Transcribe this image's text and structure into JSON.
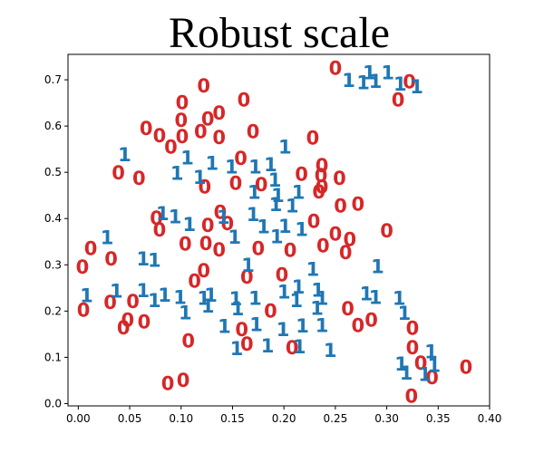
{
  "chart_data": {
    "type": "scatter",
    "title": "Robust scale",
    "xlabel": "",
    "ylabel": "",
    "xlim": [
      -0.01,
      0.4
    ],
    "ylim": [
      -0.005,
      0.755
    ],
    "xticks": [
      0.0,
      0.05,
      0.1,
      0.15,
      0.2,
      0.25,
      0.3,
      0.35,
      0.4
    ],
    "xtick_labels": [
      "0.00",
      "0.05",
      "0.10",
      "0.15",
      "0.20",
      "0.25",
      "0.30",
      "0.35",
      "0.40"
    ],
    "yticks": [
      0.0,
      0.1,
      0.2,
      0.3,
      0.4,
      0.5,
      0.6,
      0.7
    ],
    "ytick_labels": [
      "0.0",
      "0.1",
      "0.2",
      "0.3",
      "0.4",
      "0.5",
      "0.6",
      "0.7"
    ],
    "grid": false,
    "marker_colors": {
      "0": "#d62728",
      "1": "#1f77b4"
    },
    "series": [
      {
        "marker": "0",
        "points": [
          [
            0.25,
            0.725
          ],
          [
            0.322,
            0.695
          ],
          [
            0.311,
            0.656
          ],
          [
            0.122,
            0.686
          ],
          [
            0.101,
            0.65
          ],
          [
            0.161,
            0.656
          ],
          [
            0.137,
            0.628
          ],
          [
            0.126,
            0.615
          ],
          [
            0.1,
            0.612
          ],
          [
            0.066,
            0.594
          ],
          [
            0.079,
            0.579
          ],
          [
            0.119,
            0.588
          ],
          [
            0.101,
            0.577
          ],
          [
            0.137,
            0.575
          ],
          [
            0.17,
            0.588
          ],
          [
            0.09,
            0.554
          ],
          [
            0.228,
            0.574
          ],
          [
            0.158,
            0.53
          ],
          [
            0.039,
            0.498
          ],
          [
            0.059,
            0.487
          ],
          [
            0.217,
            0.495
          ],
          [
            0.237,
            0.514
          ],
          [
            0.236,
            0.493
          ],
          [
            0.254,
            0.487
          ],
          [
            0.234,
            0.457
          ],
          [
            0.153,
            0.476
          ],
          [
            0.178,
            0.473
          ],
          [
            0.123,
            0.468
          ],
          [
            0.237,
            0.468
          ],
          [
            0.255,
            0.427
          ],
          [
            0.272,
            0.431
          ],
          [
            0.138,
            0.413
          ],
          [
            0.076,
            0.4
          ],
          [
            0.079,
            0.375
          ],
          [
            0.126,
            0.385
          ],
          [
            0.145,
            0.389
          ],
          [
            0.229,
            0.394
          ],
          [
            0.25,
            0.366
          ],
          [
            0.264,
            0.354
          ],
          [
            0.3,
            0.373
          ],
          [
            0.012,
            0.335
          ],
          [
            0.104,
            0.345
          ],
          [
            0.124,
            0.346
          ],
          [
            0.137,
            0.332
          ],
          [
            0.175,
            0.335
          ],
          [
            0.206,
            0.331
          ],
          [
            0.238,
            0.341
          ],
          [
            0.26,
            0.326
          ],
          [
            0.004,
            0.295
          ],
          [
            0.032,
            0.312
          ],
          [
            0.122,
            0.287
          ],
          [
            0.164,
            0.273
          ],
          [
            0.113,
            0.264
          ],
          [
            0.198,
            0.278
          ],
          [
            0.031,
            0.218
          ],
          [
            0.053,
            0.22
          ],
          [
            0.005,
            0.202
          ],
          [
            0.187,
            0.2
          ],
          [
            0.262,
            0.205
          ],
          [
            0.048,
            0.18
          ],
          [
            0.064,
            0.176
          ],
          [
            0.044,
            0.163
          ],
          [
            0.285,
            0.18
          ],
          [
            0.272,
            0.168
          ],
          [
            0.159,
            0.16
          ],
          [
            0.325,
            0.162
          ],
          [
            0.107,
            0.135
          ],
          [
            0.164,
            0.128
          ],
          [
            0.208,
            0.12
          ],
          [
            0.325,
            0.12
          ],
          [
            0.333,
            0.087
          ],
          [
            0.377,
            0.078
          ],
          [
            0.344,
            0.056
          ],
          [
            0.087,
            0.043
          ],
          [
            0.102,
            0.05
          ],
          [
            0.324,
            0.016
          ]
        ]
      },
      {
        "marker": "1",
        "points": [
          [
            0.263,
            0.698
          ],
          [
            0.283,
            0.715
          ],
          [
            0.301,
            0.715
          ],
          [
            0.277,
            0.693
          ],
          [
            0.289,
            0.696
          ],
          [
            0.313,
            0.69
          ],
          [
            0.329,
            0.684
          ],
          [
            0.045,
            0.538
          ],
          [
            0.201,
            0.554
          ],
          [
            0.106,
            0.531
          ],
          [
            0.13,
            0.519
          ],
          [
            0.149,
            0.511
          ],
          [
            0.172,
            0.511
          ],
          [
            0.187,
            0.516
          ],
          [
            0.096,
            0.497
          ],
          [
            0.118,
            0.489
          ],
          [
            0.191,
            0.483
          ],
          [
            0.171,
            0.456
          ],
          [
            0.194,
            0.449
          ],
          [
            0.214,
            0.456
          ],
          [
            0.17,
            0.408
          ],
          [
            0.192,
            0.43
          ],
          [
            0.208,
            0.427
          ],
          [
            0.082,
            0.41
          ],
          [
            0.094,
            0.403
          ],
          [
            0.108,
            0.387
          ],
          [
            0.141,
            0.402
          ],
          [
            0.18,
            0.382
          ],
          [
            0.201,
            0.383
          ],
          [
            0.217,
            0.376
          ],
          [
            0.193,
            0.36
          ],
          [
            0.152,
            0.359
          ],
          [
            0.028,
            0.358
          ],
          [
            0.063,
            0.312
          ],
          [
            0.074,
            0.309
          ],
          [
            0.165,
            0.299
          ],
          [
            0.228,
            0.29
          ],
          [
            0.291,
            0.296
          ],
          [
            0.008,
            0.233
          ],
          [
            0.037,
            0.243
          ],
          [
            0.063,
            0.244
          ],
          [
            0.084,
            0.234
          ],
          [
            0.074,
            0.222
          ],
          [
            0.099,
            0.229
          ],
          [
            0.122,
            0.227
          ],
          [
            0.129,
            0.234
          ],
          [
            0.153,
            0.226
          ],
          [
            0.172,
            0.227
          ],
          [
            0.2,
            0.241
          ],
          [
            0.214,
            0.252
          ],
          [
            0.233,
            0.245
          ],
          [
            0.237,
            0.227
          ],
          [
            0.212,
            0.222
          ],
          [
            0.232,
            0.206
          ],
          [
            0.126,
            0.21
          ],
          [
            0.155,
            0.205
          ],
          [
            0.104,
            0.196
          ],
          [
            0.28,
            0.237
          ],
          [
            0.289,
            0.229
          ],
          [
            0.312,
            0.227
          ],
          [
            0.317,
            0.195
          ],
          [
            0.142,
            0.166
          ],
          [
            0.173,
            0.17
          ],
          [
            0.199,
            0.16
          ],
          [
            0.218,
            0.167
          ],
          [
            0.237,
            0.168
          ],
          [
            0.154,
            0.118
          ],
          [
            0.184,
            0.124
          ],
          [
            0.215,
            0.122
          ],
          [
            0.245,
            0.114
          ],
          [
            0.343,
            0.112
          ],
          [
            0.314,
            0.085
          ],
          [
            0.346,
            0.082
          ],
          [
            0.319,
            0.066
          ],
          [
            0.337,
            0.063
          ]
        ]
      }
    ]
  }
}
